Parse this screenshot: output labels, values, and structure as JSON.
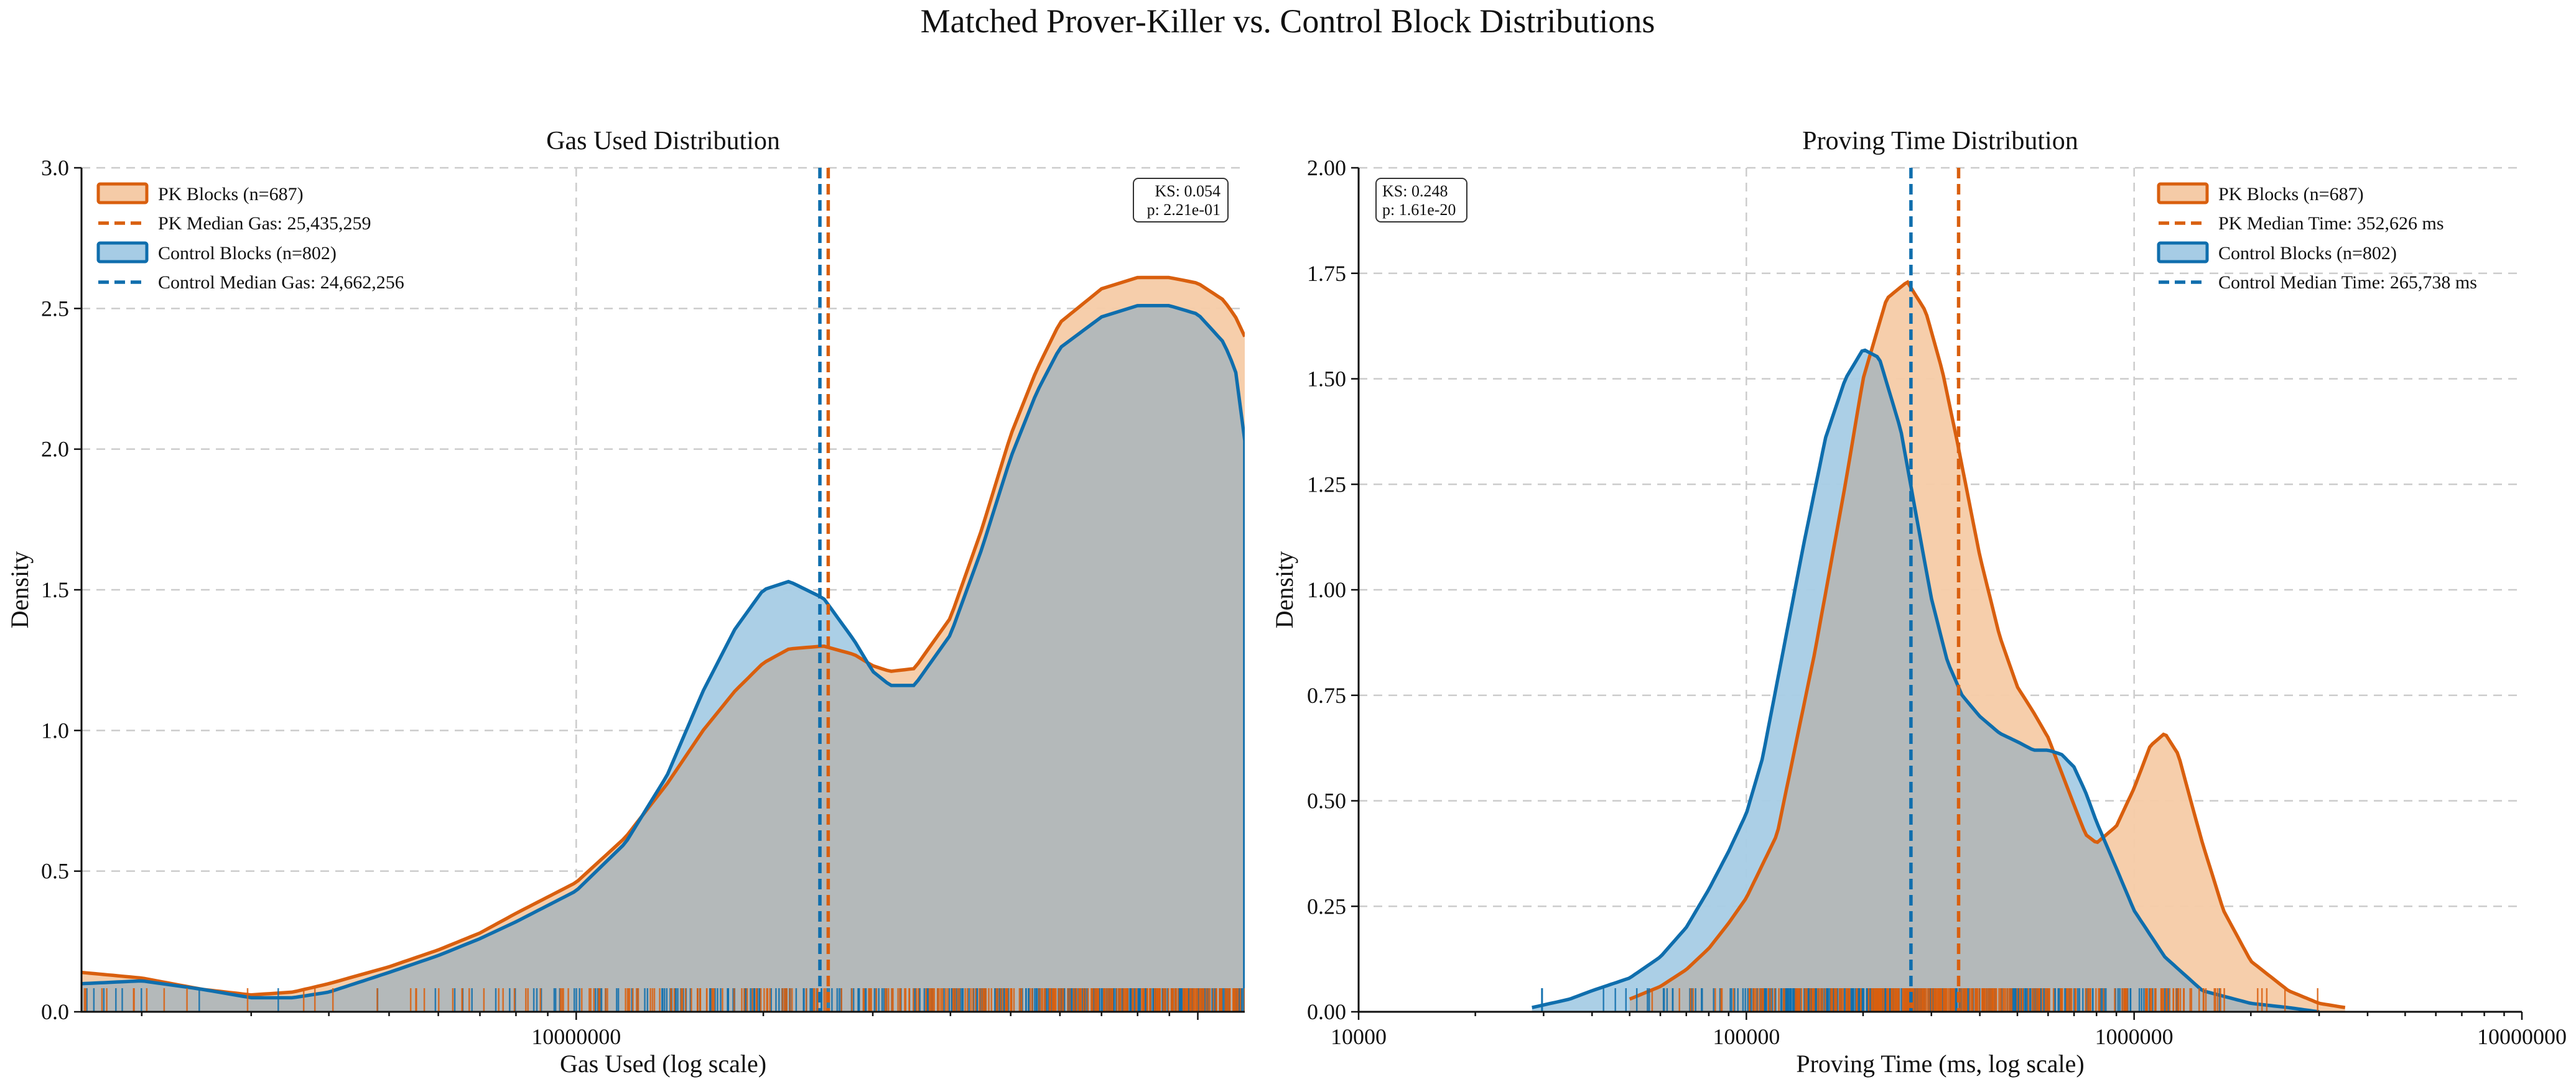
{
  "figure": {
    "title": "Matched Prover-Killer vs. Control Block Distributions"
  },
  "colors": {
    "pk": "#d95f0e",
    "pk_fill": "#f5cba7",
    "control": "#0f6ead",
    "control_fill": "#a6cce5",
    "overlap": "#b4b9ba"
  },
  "chart_data": [
    {
      "type": "area",
      "title": "Gas Used Distribution",
      "xlabel": "Gas Used (log scale)",
      "ylabel": "Density",
      "xscale": "log",
      "xlim": [
        1600000,
        119000000
      ],
      "ylim": [
        0,
        3.0
      ],
      "yticks": [
        0.0,
        0.5,
        1.0,
        1.5,
        2.0,
        2.5,
        3.0
      ],
      "ytick_labels": [
        "0.0",
        "0.5",
        "1.0",
        "1.5",
        "2.0",
        "2.5",
        "3.0"
      ],
      "xticks": [
        10000000
      ],
      "xtick_labels": [
        "10000000"
      ],
      "grid": true,
      "legend_position": "top-left",
      "series": [
        {
          "name": "PK Blocks (n=687)",
          "color": "pk",
          "x": [
            1600000,
            2000000,
            2500000,
            3000000,
            3500000,
            4000000,
            5000000,
            6000000,
            7000000,
            8000000,
            10000000,
            12000000,
            14000000,
            16000000,
            18000000,
            20000000,
            22000000,
            25000000,
            28000000,
            30000000,
            32000000,
            35000000,
            40000000,
            45000000,
            50000000,
            55000000,
            60000000,
            70000000,
            80000000,
            90000000,
            100000000,
            110000000,
            115000000,
            119000000
          ],
          "y": [
            0.14,
            0.12,
            0.08,
            0.06,
            0.07,
            0.1,
            0.16,
            0.22,
            0.28,
            0.35,
            0.46,
            0.62,
            0.81,
            1.0,
            1.14,
            1.24,
            1.29,
            1.3,
            1.27,
            1.23,
            1.21,
            1.22,
            1.4,
            1.72,
            2.05,
            2.28,
            2.45,
            2.57,
            2.61,
            2.61,
            2.59,
            2.53,
            2.47,
            2.4
          ]
        },
        {
          "name": "Control Blocks (n=802)",
          "color": "control",
          "x": [
            1600000,
            2000000,
            2500000,
            3000000,
            3500000,
            4000000,
            5000000,
            6000000,
            7000000,
            8000000,
            10000000,
            12000000,
            14000000,
            16000000,
            18000000,
            20000000,
            22000000,
            25000000,
            28000000,
            30000000,
            32000000,
            35000000,
            40000000,
            45000000,
            50000000,
            55000000,
            60000000,
            70000000,
            80000000,
            90000000,
            100000000,
            110000000,
            115000000,
            119000000
          ],
          "y": [
            0.1,
            0.11,
            0.08,
            0.05,
            0.05,
            0.07,
            0.14,
            0.2,
            0.26,
            0.32,
            0.43,
            0.6,
            0.84,
            1.14,
            1.36,
            1.5,
            1.53,
            1.47,
            1.32,
            1.21,
            1.16,
            1.16,
            1.34,
            1.65,
            1.97,
            2.2,
            2.36,
            2.47,
            2.51,
            2.51,
            2.48,
            2.38,
            2.28,
            2.03
          ]
        }
      ],
      "medians": [
        {
          "label": "PK Median Gas: 25,435,259",
          "value": 25435259,
          "color": "pk"
        },
        {
          "label": "Control Median Gas: 24,662,256",
          "value": 24662256,
          "color": "control"
        }
      ],
      "stats": {
        "ks": "KS: 0.054",
        "p": "p: 2.21e-01"
      }
    },
    {
      "type": "area",
      "title": "Proving Time Distribution",
      "xlabel": "Proving Time (ms, log scale)",
      "ylabel": "Density",
      "xscale": "log",
      "xlim": [
        10000,
        10000000
      ],
      "ylim": [
        0,
        2.0
      ],
      "yticks": [
        0.0,
        0.25,
        0.5,
        0.75,
        1.0,
        1.25,
        1.5,
        1.75,
        2.0
      ],
      "ytick_labels": [
        "0.00",
        "0.25",
        "0.50",
        "0.75",
        "1.00",
        "1.25",
        "1.50",
        "1.75",
        "2.00"
      ],
      "xticks": [
        10000,
        100000,
        1000000,
        10000000
      ],
      "xtick_labels": [
        "10000",
        "100000",
        "1000000",
        "10000000"
      ],
      "grid": true,
      "legend_position": "top-right",
      "series": [
        {
          "name": "PK Blocks (n=687)",
          "color": "pk",
          "x": [
            50000,
            60000,
            70000,
            80000,
            90000,
            100000,
            120000,
            150000,
            180000,
            200000,
            230000,
            260000,
            290000,
            320000,
            350000,
            400000,
            450000,
            500000,
            550000,
            600000,
            700000,
            750000,
            800000,
            900000,
            1000000,
            1100000,
            1200000,
            1300000,
            1400000,
            1500000,
            1700000,
            2000000,
            2500000,
            3000000,
            3500000
          ],
          "y": [
            0.03,
            0.06,
            0.1,
            0.15,
            0.21,
            0.27,
            0.42,
            0.85,
            1.25,
            1.5,
            1.69,
            1.73,
            1.66,
            1.52,
            1.35,
            1.08,
            0.89,
            0.77,
            0.71,
            0.65,
            0.49,
            0.42,
            0.4,
            0.44,
            0.53,
            0.63,
            0.66,
            0.61,
            0.5,
            0.4,
            0.24,
            0.12,
            0.05,
            0.02,
            0.01
          ]
        },
        {
          "name": "Control Blocks (n=802)",
          "color": "control",
          "x": [
            28000,
            35000,
            40000,
            50000,
            60000,
            70000,
            80000,
            90000,
            100000,
            110000,
            120000,
            140000,
            160000,
            180000,
            200000,
            220000,
            250000,
            280000,
            300000,
            330000,
            360000,
            400000,
            450000,
            500000,
            550000,
            600000,
            650000,
            700000,
            750000,
            800000,
            900000,
            1000000,
            1200000,
            1500000,
            2000000,
            2500000,
            3000000
          ],
          "y": [
            0.01,
            0.03,
            0.05,
            0.08,
            0.13,
            0.2,
            0.29,
            0.38,
            0.47,
            0.6,
            0.78,
            1.1,
            1.36,
            1.5,
            1.57,
            1.55,
            1.38,
            1.13,
            0.98,
            0.83,
            0.75,
            0.7,
            0.66,
            0.64,
            0.62,
            0.62,
            0.61,
            0.58,
            0.52,
            0.45,
            0.34,
            0.24,
            0.13,
            0.05,
            0.02,
            0.01,
            0.0
          ]
        }
      ],
      "medians": [
        {
          "label": "PK Median Time: 352,626 ms",
          "value": 352626,
          "color": "pk"
        },
        {
          "label": "Control Median Time: 265,738 ms",
          "value": 265738,
          "color": "control"
        }
      ],
      "stats": {
        "ks": "KS: 0.248",
        "p": "p: 1.61e-20"
      }
    }
  ]
}
